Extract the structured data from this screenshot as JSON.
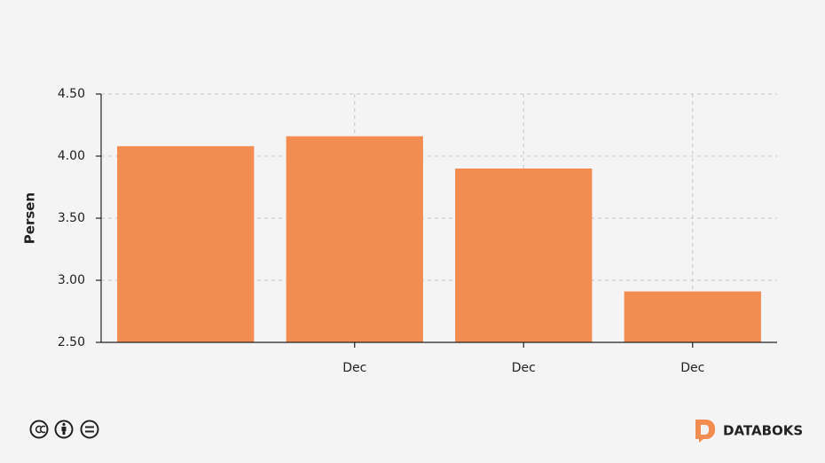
{
  "chart_data": {
    "type": "bar",
    "y_label": "Persen",
    "categories": [
      null,
      "Dec",
      "Dec",
      "Dec"
    ],
    "values": [
      4.08,
      4.16,
      3.9,
      2.91
    ],
    "color": "#f28c51",
    "ylim": [
      2.5,
      4.5
    ],
    "yticks": [
      {
        "value": 2.5,
        "label": "2.50"
      },
      {
        "value": 3,
        "label": "3.00"
      },
      {
        "value": 3.5,
        "label": "3.50"
      },
      {
        "value": 4,
        "label": "4.00"
      },
      {
        "value": 4.5,
        "label": "4.50"
      }
    ],
    "grid": true
  },
  "footer": {
    "brand": "DATABOKS"
  }
}
